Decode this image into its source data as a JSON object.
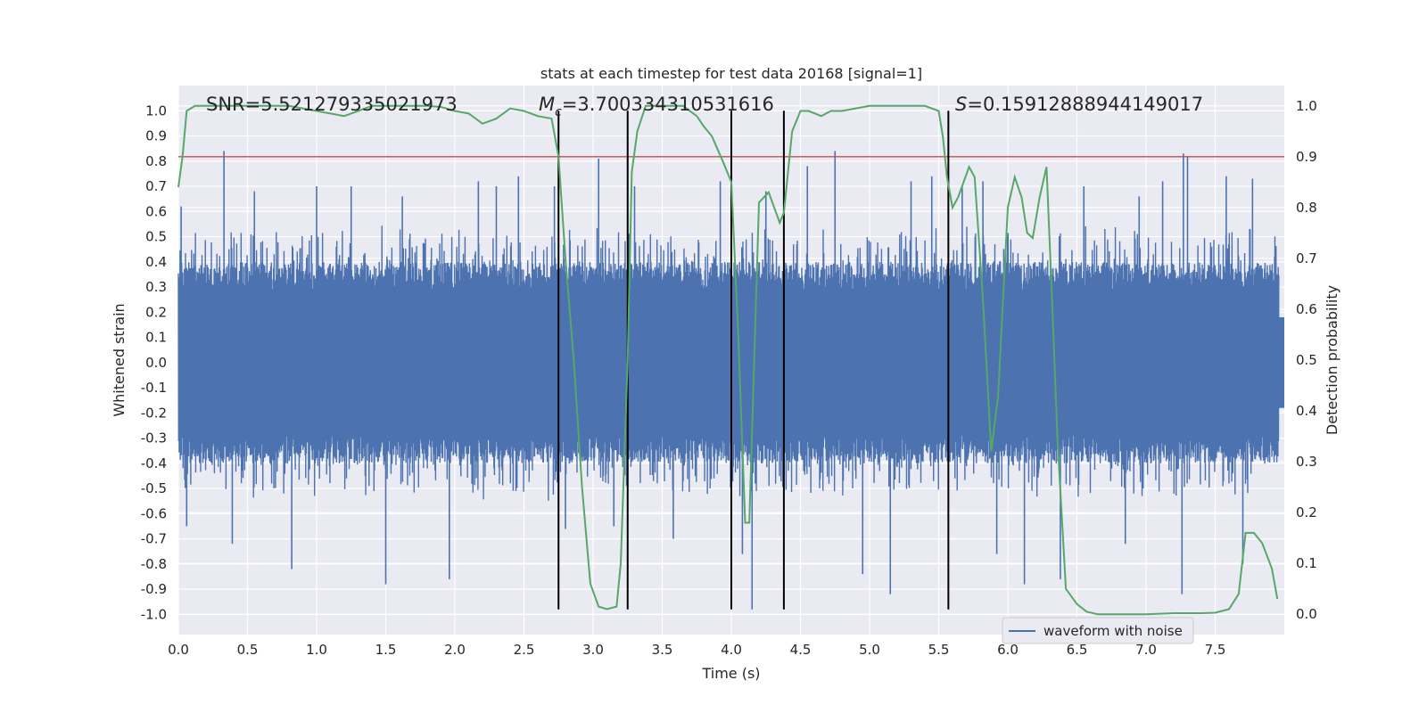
{
  "chart_data": {
    "type": "line",
    "title": "stats at each timestep for test data 20168 [signal=1]",
    "xlabel": "Time (s)",
    "ylabel": "Whitened strain",
    "ylabel_right": "Detection probability",
    "xlim": [
      0.0,
      8.0
    ],
    "ylim": [
      -1.08,
      1.1
    ],
    "ylim_right": [
      -0.04,
      1.04
    ],
    "x_ticks": [
      0.0,
      0.5,
      1.0,
      1.5,
      2.0,
      2.5,
      3.0,
      3.5,
      4.0,
      4.5,
      5.0,
      5.5,
      6.0,
      6.5,
      7.0,
      7.5
    ],
    "x_tick_labels": [
      "0.0",
      "0.5",
      "1.0",
      "1.5",
      "2.0",
      "2.5",
      "3.0",
      "3.5",
      "4.0",
      "4.5",
      "5.0",
      "5.5",
      "6.0",
      "6.5",
      "7.0",
      "7.5"
    ],
    "y_ticks": [
      1.0,
      0.9,
      0.8,
      0.7,
      0.6,
      0.5,
      0.4,
      0.3,
      0.2,
      0.1,
      0.0,
      -0.1,
      -0.2,
      -0.3,
      -0.4,
      -0.5,
      -0.6,
      -0.7,
      -0.8,
      -0.9,
      -1.0
    ],
    "y_tick_labels": [
      "1.0",
      "0.9",
      "0.8",
      "0.7",
      "0.6",
      "0.5",
      "0.4",
      "0.3",
      "0.2",
      "0.1",
      "0.0",
      "-0.1",
      "-0.2",
      "-0.3",
      "-0.4",
      "-0.5",
      "-0.6",
      "-0.7",
      "-0.8",
      "-0.9",
      "-1.0"
    ],
    "y2_ticks": [
      1.0,
      0.9,
      0.8,
      0.7,
      0.6,
      0.5,
      0.4,
      0.3,
      0.2,
      0.1,
      0.0
    ],
    "y2_tick_labels": [
      "1.0",
      "0.9",
      "0.8",
      "0.7",
      "0.6",
      "0.5",
      "0.4",
      "0.3",
      "0.2",
      "0.1",
      "0.0"
    ],
    "grid": true,
    "series": [
      {
        "name": "waveform with noise",
        "axis": "left",
        "color": "#4c72b0",
        "note": "dense noisy waveform, core amplitude about +/-0.4 with spikes up to +0.84 and down to -0.98",
        "core_amplitude": 0.4,
        "spikes": [
          [
            0.02,
            0.62
          ],
          [
            0.06,
            -0.65
          ],
          [
            0.33,
            0.84
          ],
          [
            0.39,
            -0.72
          ],
          [
            0.55,
            0.68
          ],
          [
            0.82,
            -0.82
          ],
          [
            1.0,
            0.7
          ],
          [
            1.25,
            0.7
          ],
          [
            1.5,
            -0.88
          ],
          [
            1.62,
            0.66
          ],
          [
            1.96,
            -0.86
          ],
          [
            2.17,
            0.72
          ],
          [
            2.3,
            0.7
          ],
          [
            2.46,
            0.74
          ],
          [
            2.72,
            0.7
          ],
          [
            2.8,
            -0.66
          ],
          [
            3.04,
            0.81
          ],
          [
            3.15,
            -0.65
          ],
          [
            3.3,
            0.7
          ],
          [
            3.58,
            -0.7
          ],
          [
            3.92,
            0.72
          ],
          [
            4.08,
            -0.76
          ],
          [
            4.15,
            -0.98
          ],
          [
            4.25,
            0.68
          ],
          [
            4.55,
            0.78
          ],
          [
            4.75,
            0.84
          ],
          [
            4.95,
            -0.84
          ],
          [
            5.15,
            -0.92
          ],
          [
            5.3,
            0.72
          ],
          [
            5.45,
            0.74
          ],
          [
            5.67,
            0.7
          ],
          [
            5.82,
            0.72
          ],
          [
            5.92,
            -0.76
          ],
          [
            6.12,
            -0.88
          ],
          [
            6.38,
            -0.86
          ],
          [
            6.55,
            0.7
          ],
          [
            6.85,
            -0.72
          ],
          [
            6.95,
            0.66
          ],
          [
            7.12,
            0.72
          ],
          [
            7.26,
            -0.92
          ],
          [
            7.27,
            0.83
          ],
          [
            7.3,
            0.82
          ],
          [
            7.58,
            0.74
          ],
          [
            7.7,
            -0.8
          ],
          [
            7.77,
            0.73
          ],
          [
            7.93,
            0.42
          ]
        ]
      },
      {
        "name": "detection probability",
        "axis": "right",
        "color": "#55a868",
        "x": [
          0.0,
          0.03,
          0.06,
          0.12,
          0.2,
          0.3,
          0.4,
          0.5,
          0.6,
          0.7,
          0.8,
          0.9,
          1.0,
          1.1,
          1.2,
          1.3,
          1.4,
          1.5,
          1.6,
          1.7,
          1.8,
          1.9,
          2.0,
          2.1,
          2.2,
          2.3,
          2.4,
          2.5,
          2.6,
          2.7,
          2.75,
          2.8,
          2.86,
          2.92,
          2.98,
          3.04,
          3.1,
          3.17,
          3.2,
          3.25,
          3.28,
          3.32,
          3.38,
          3.45,
          3.55,
          3.65,
          3.75,
          3.8,
          3.86,
          3.94,
          4.0,
          4.05,
          4.1,
          4.13,
          4.2,
          4.27,
          4.35,
          4.38,
          4.44,
          4.5,
          4.56,
          4.65,
          4.72,
          4.8,
          4.9,
          5.0,
          5.1,
          5.2,
          5.3,
          5.4,
          5.5,
          5.53,
          5.56,
          5.6,
          5.64,
          5.68,
          5.72,
          5.76,
          5.82,
          5.88,
          5.93,
          5.96,
          6.0,
          6.05,
          6.1,
          6.14,
          6.18,
          6.23,
          6.28,
          6.32,
          6.36,
          6.42,
          6.5,
          6.57,
          6.65,
          6.8,
          7.0,
          7.2,
          7.4,
          7.5,
          7.6,
          7.67,
          7.72,
          7.78,
          7.84,
          7.91,
          7.95
        ],
        "values": [
          0.84,
          0.9,
          0.99,
          1.0,
          1.0,
          1.0,
          1.0,
          1.0,
          1.0,
          1.0,
          1.0,
          0.995,
          0.99,
          0.985,
          0.98,
          0.99,
          1.0,
          1.0,
          1.0,
          1.0,
          1.0,
          0.998,
          0.99,
          0.985,
          0.965,
          0.975,
          0.995,
          0.99,
          0.98,
          0.975,
          0.9,
          0.7,
          0.5,
          0.25,
          0.06,
          0.015,
          0.01,
          0.015,
          0.1,
          0.5,
          0.87,
          0.95,
          1.0,
          1.0,
          1.0,
          1.0,
          0.98,
          0.96,
          0.94,
          0.89,
          0.85,
          0.55,
          0.18,
          0.18,
          0.81,
          0.83,
          0.77,
          0.79,
          0.95,
          0.99,
          0.99,
          0.98,
          0.99,
          0.99,
          0.995,
          1.0,
          1.0,
          1.0,
          1.0,
          1.0,
          0.99,
          0.94,
          0.86,
          0.8,
          0.82,
          0.85,
          0.88,
          0.86,
          0.62,
          0.32,
          0.43,
          0.59,
          0.8,
          0.86,
          0.82,
          0.75,
          0.74,
          0.82,
          0.88,
          0.62,
          0.34,
          0.05,
          0.02,
          0.005,
          0.0,
          0.0,
          0.0,
          0.002,
          0.002,
          0.003,
          0.01,
          0.04,
          0.16,
          0.16,
          0.14,
          0.09,
          0.03
        ]
      }
    ],
    "threshold_line": {
      "y_right": 0.9,
      "color": "#c44e52"
    },
    "vertical_lines": {
      "x": [
        2.75,
        3.25,
        4.0,
        4.38,
        5.57
      ],
      "y_from": -0.98,
      "y_to": 1.0,
      "color": "#000000"
    },
    "legend": {
      "label": "waveform with noise",
      "position": "bottom-right"
    }
  },
  "annotations": {
    "snr_label": "SNR=",
    "snr_value": "5.521279335021973",
    "mc_symbol": "M",
    "mc_subscript": "c",
    "mc_value": "=3.700334310531616",
    "s_symbol": "S",
    "s_value": "=0.15912888944149017"
  }
}
